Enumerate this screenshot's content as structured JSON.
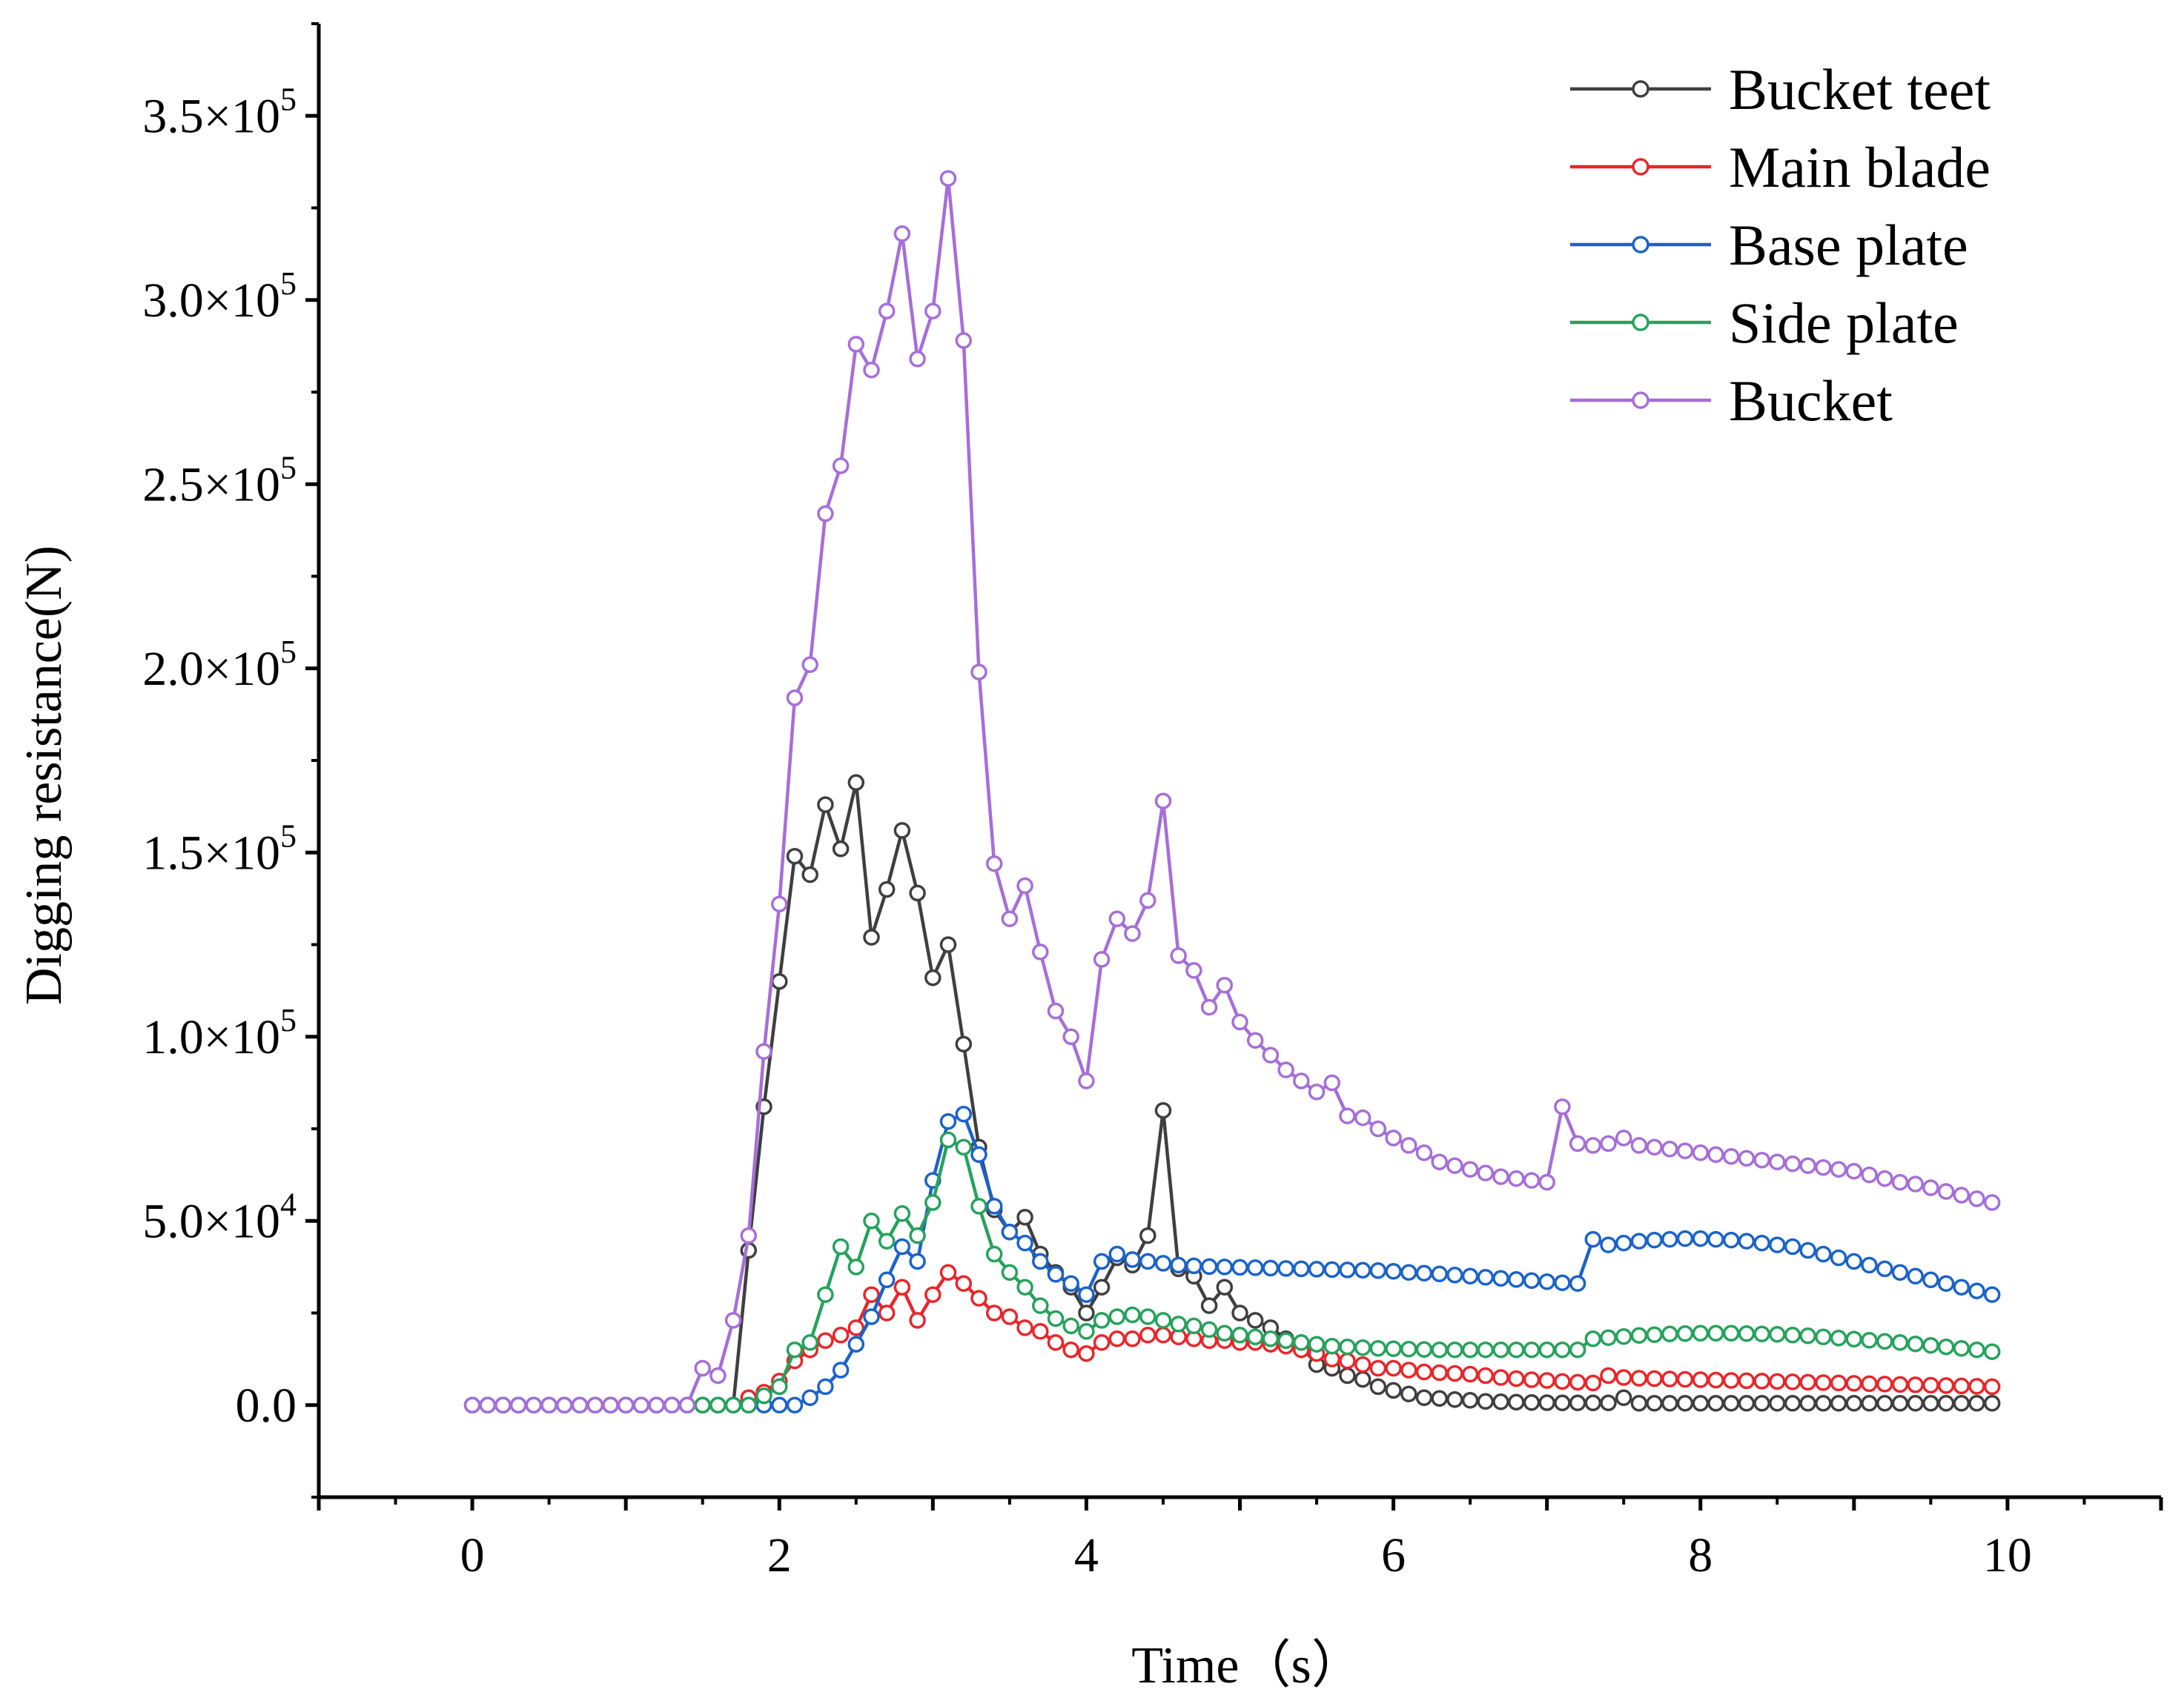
{
  "chart_data": {
    "type": "line",
    "title": "",
    "xlabel": "Time（s）",
    "ylabel": "Digging resistance(N)",
    "xlim": [
      -1,
      11
    ],
    "ylim": [
      -25000,
      375000
    ],
    "x_ticks": [
      0,
      2,
      4,
      6,
      8,
      10
    ],
    "x_tick_labels": [
      "0",
      "2",
      "4",
      "6",
      "8",
      "10"
    ],
    "y_ticks": [
      0,
      50000,
      100000,
      150000,
      200000,
      250000,
      300000,
      350000
    ],
    "y_tick_labels": [
      {
        "mantissa": "0.0",
        "exp": ""
      },
      {
        "mantissa": "5.0×10",
        "exp": "4"
      },
      {
        "mantissa": "1.0×10",
        "exp": "5"
      },
      {
        "mantissa": "1.5×10",
        "exp": "5"
      },
      {
        "mantissa": "2.0×10",
        "exp": "5"
      },
      {
        "mantissa": "2.5×10",
        "exp": "5"
      },
      {
        "mantissa": "3.0×10",
        "exp": "5"
      },
      {
        "mantissa": "3.5×10",
        "exp": "5"
      }
    ],
    "grid": false,
    "legend_position": "top-right",
    "x_start": 0,
    "x_step": 0.1,
    "series": [
      {
        "name": "Bucket teet",
        "color": "#3f3f3f",
        "values": [
          0,
          0,
          0,
          0,
          0,
          0,
          0,
          0,
          0,
          0,
          0,
          0,
          0,
          0,
          0,
          0,
          0,
          0,
          42000,
          81000,
          115000,
          149000,
          144000,
          163000,
          151000,
          169000,
          127000,
          140000,
          156000,
          139000,
          116000,
          125000,
          98000,
          70000,
          53000,
          47000,
          51000,
          41000,
          36000,
          32000,
          25000,
          32000,
          40000,
          38000,
          46000,
          80000,
          37000,
          35000,
          27000,
          32000,
          25000,
          23000,
          21000,
          18000,
          16000,
          11000,
          10000,
          8000,
          7000,
          5000,
          4000,
          3000,
          2000,
          1800,
          1500,
          1300,
          1000,
          900,
          800,
          700,
          650,
          600,
          600,
          600,
          600,
          2000,
          500,
          500,
          500,
          500,
          500,
          500,
          500,
          500,
          500,
          500,
          500,
          500,
          500,
          500,
          500,
          500,
          500,
          500,
          500,
          500,
          500,
          500,
          500,
          500
        ]
      },
      {
        "name": "Main blade",
        "color": "#e8262a",
        "values": [
          0,
          0,
          0,
          0,
          0,
          0,
          0,
          0,
          0,
          0,
          0,
          0,
          0,
          0,
          0,
          0,
          0,
          0,
          2000,
          3500,
          6500,
          12000,
          15000,
          17500,
          19000,
          21000,
          30000,
          25000,
          32000,
          23000,
          30000,
          36000,
          33000,
          29000,
          25000,
          24000,
          21000,
          20000,
          17000,
          15000,
          14000,
          17000,
          18000,
          18000,
          19000,
          19000,
          18500,
          18000,
          17500,
          17500,
          17000,
          17000,
          16500,
          16000,
          15000,
          14000,
          12500,
          12000,
          11000,
          10000,
          10000,
          9500,
          9000,
          8800,
          8600,
          8400,
          8000,
          7500,
          7200,
          6900,
          6700,
          6400,
          6200,
          6000,
          8000,
          7500,
          7300,
          7200,
          7100,
          7000,
          6900,
          6800,
          6700,
          6600,
          6500,
          6400,
          6300,
          6200,
          6100,
          6000,
          5900,
          5800,
          5700,
          5600,
          5500,
          5400,
          5300,
          5200,
          5100,
          5000
        ]
      },
      {
        "name": "Base plate",
        "color": "#1a63c9",
        "values": [
          0,
          0,
          0,
          0,
          0,
          0,
          0,
          0,
          0,
          0,
          0,
          0,
          0,
          0,
          0,
          0,
          0,
          0,
          0,
          0,
          0,
          0,
          2000,
          5000,
          9500,
          16500,
          24000,
          34000,
          43000,
          39000,
          61000,
          77000,
          79000,
          68000,
          54000,
          47000,
          44000,
          39000,
          35500,
          33000,
          30000,
          39000,
          41000,
          39500,
          39000,
          38500,
          38000,
          37800,
          37600,
          37500,
          37400,
          37300,
          37200,
          37100,
          37000,
          36900,
          36800,
          36700,
          36600,
          36500,
          36300,
          36000,
          35800,
          35600,
          35300,
          35000,
          34700,
          34400,
          34100,
          33800,
          33500,
          33200,
          33000,
          45000,
          43500,
          44000,
          44500,
          44800,
          45000,
          45200,
          45200,
          45000,
          44800,
          44500,
          44000,
          43500,
          43000,
          42000,
          41000,
          40000,
          39000,
          38000,
          37000,
          36000,
          35000,
          34000,
          33000,
          32000,
          31000,
          30000
        ]
      },
      {
        "name": "Side plate",
        "color": "#26a25c",
        "values": [
          0,
          0,
          0,
          0,
          0,
          0,
          0,
          0,
          0,
          0,
          0,
          0,
          0,
          0,
          0,
          0,
          0,
          0,
          0,
          2500,
          5000,
          15000,
          17000,
          30000,
          43000,
          37500,
          50000,
          44500,
          52000,
          46000,
          55000,
          72000,
          70000,
          54000,
          41000,
          36000,
          32000,
          27000,
          23500,
          21500,
          20000,
          23000,
          24000,
          24500,
          24000,
          23000,
          22000,
          21500,
          20500,
          19500,
          19000,
          18500,
          18000,
          17500,
          17000,
          16500,
          16000,
          15800,
          15600,
          15400,
          15300,
          15200,
          15100,
          15000,
          15000,
          15000,
          15000,
          15000,
          15000,
          15000,
          15000,
          15000,
          15000,
          18000,
          18300,
          18600,
          18900,
          19100,
          19300,
          19400,
          19500,
          19500,
          19500,
          19400,
          19300,
          19200,
          19000,
          18800,
          18500,
          18200,
          17900,
          17600,
          17300,
          17000,
          16600,
          16200,
          15800,
          15400,
          15000,
          14500
        ]
      },
      {
        "name": "Bucket",
        "color": "#a66ed9",
        "values": [
          0,
          0,
          0,
          0,
          0,
          0,
          0,
          0,
          0,
          0,
          0,
          0,
          0,
          0,
          0,
          10000,
          8000,
          23000,
          46000,
          96000,
          136000,
          192000,
          201000,
          242000,
          255000,
          288000,
          281000,
          297000,
          318000,
          284000,
          297000,
          333000,
          289000,
          199000,
          147000,
          132000,
          141000,
          123000,
          107000,
          100000,
          88000,
          121000,
          132000,
          128000,
          137000,
          164000,
          122000,
          118000,
          108000,
          114000,
          104000,
          99000,
          95000,
          91000,
          88000,
          85000,
          87500,
          78500,
          78000,
          75000,
          72500,
          70500,
          68500,
          66000,
          65000,
          64000,
          63000,
          62000,
          61500,
          61000,
          60500,
          81000,
          71000,
          70500,
          71000,
          72500,
          70500,
          70000,
          69500,
          69000,
          68500,
          68000,
          67500,
          67000,
          66500,
          66000,
          65500,
          65000,
          64500,
          64000,
          63500,
          62500,
          61500,
          60500,
          60000,
          59000,
          58000,
          57000,
          56000,
          55000
        ]
      }
    ]
  }
}
